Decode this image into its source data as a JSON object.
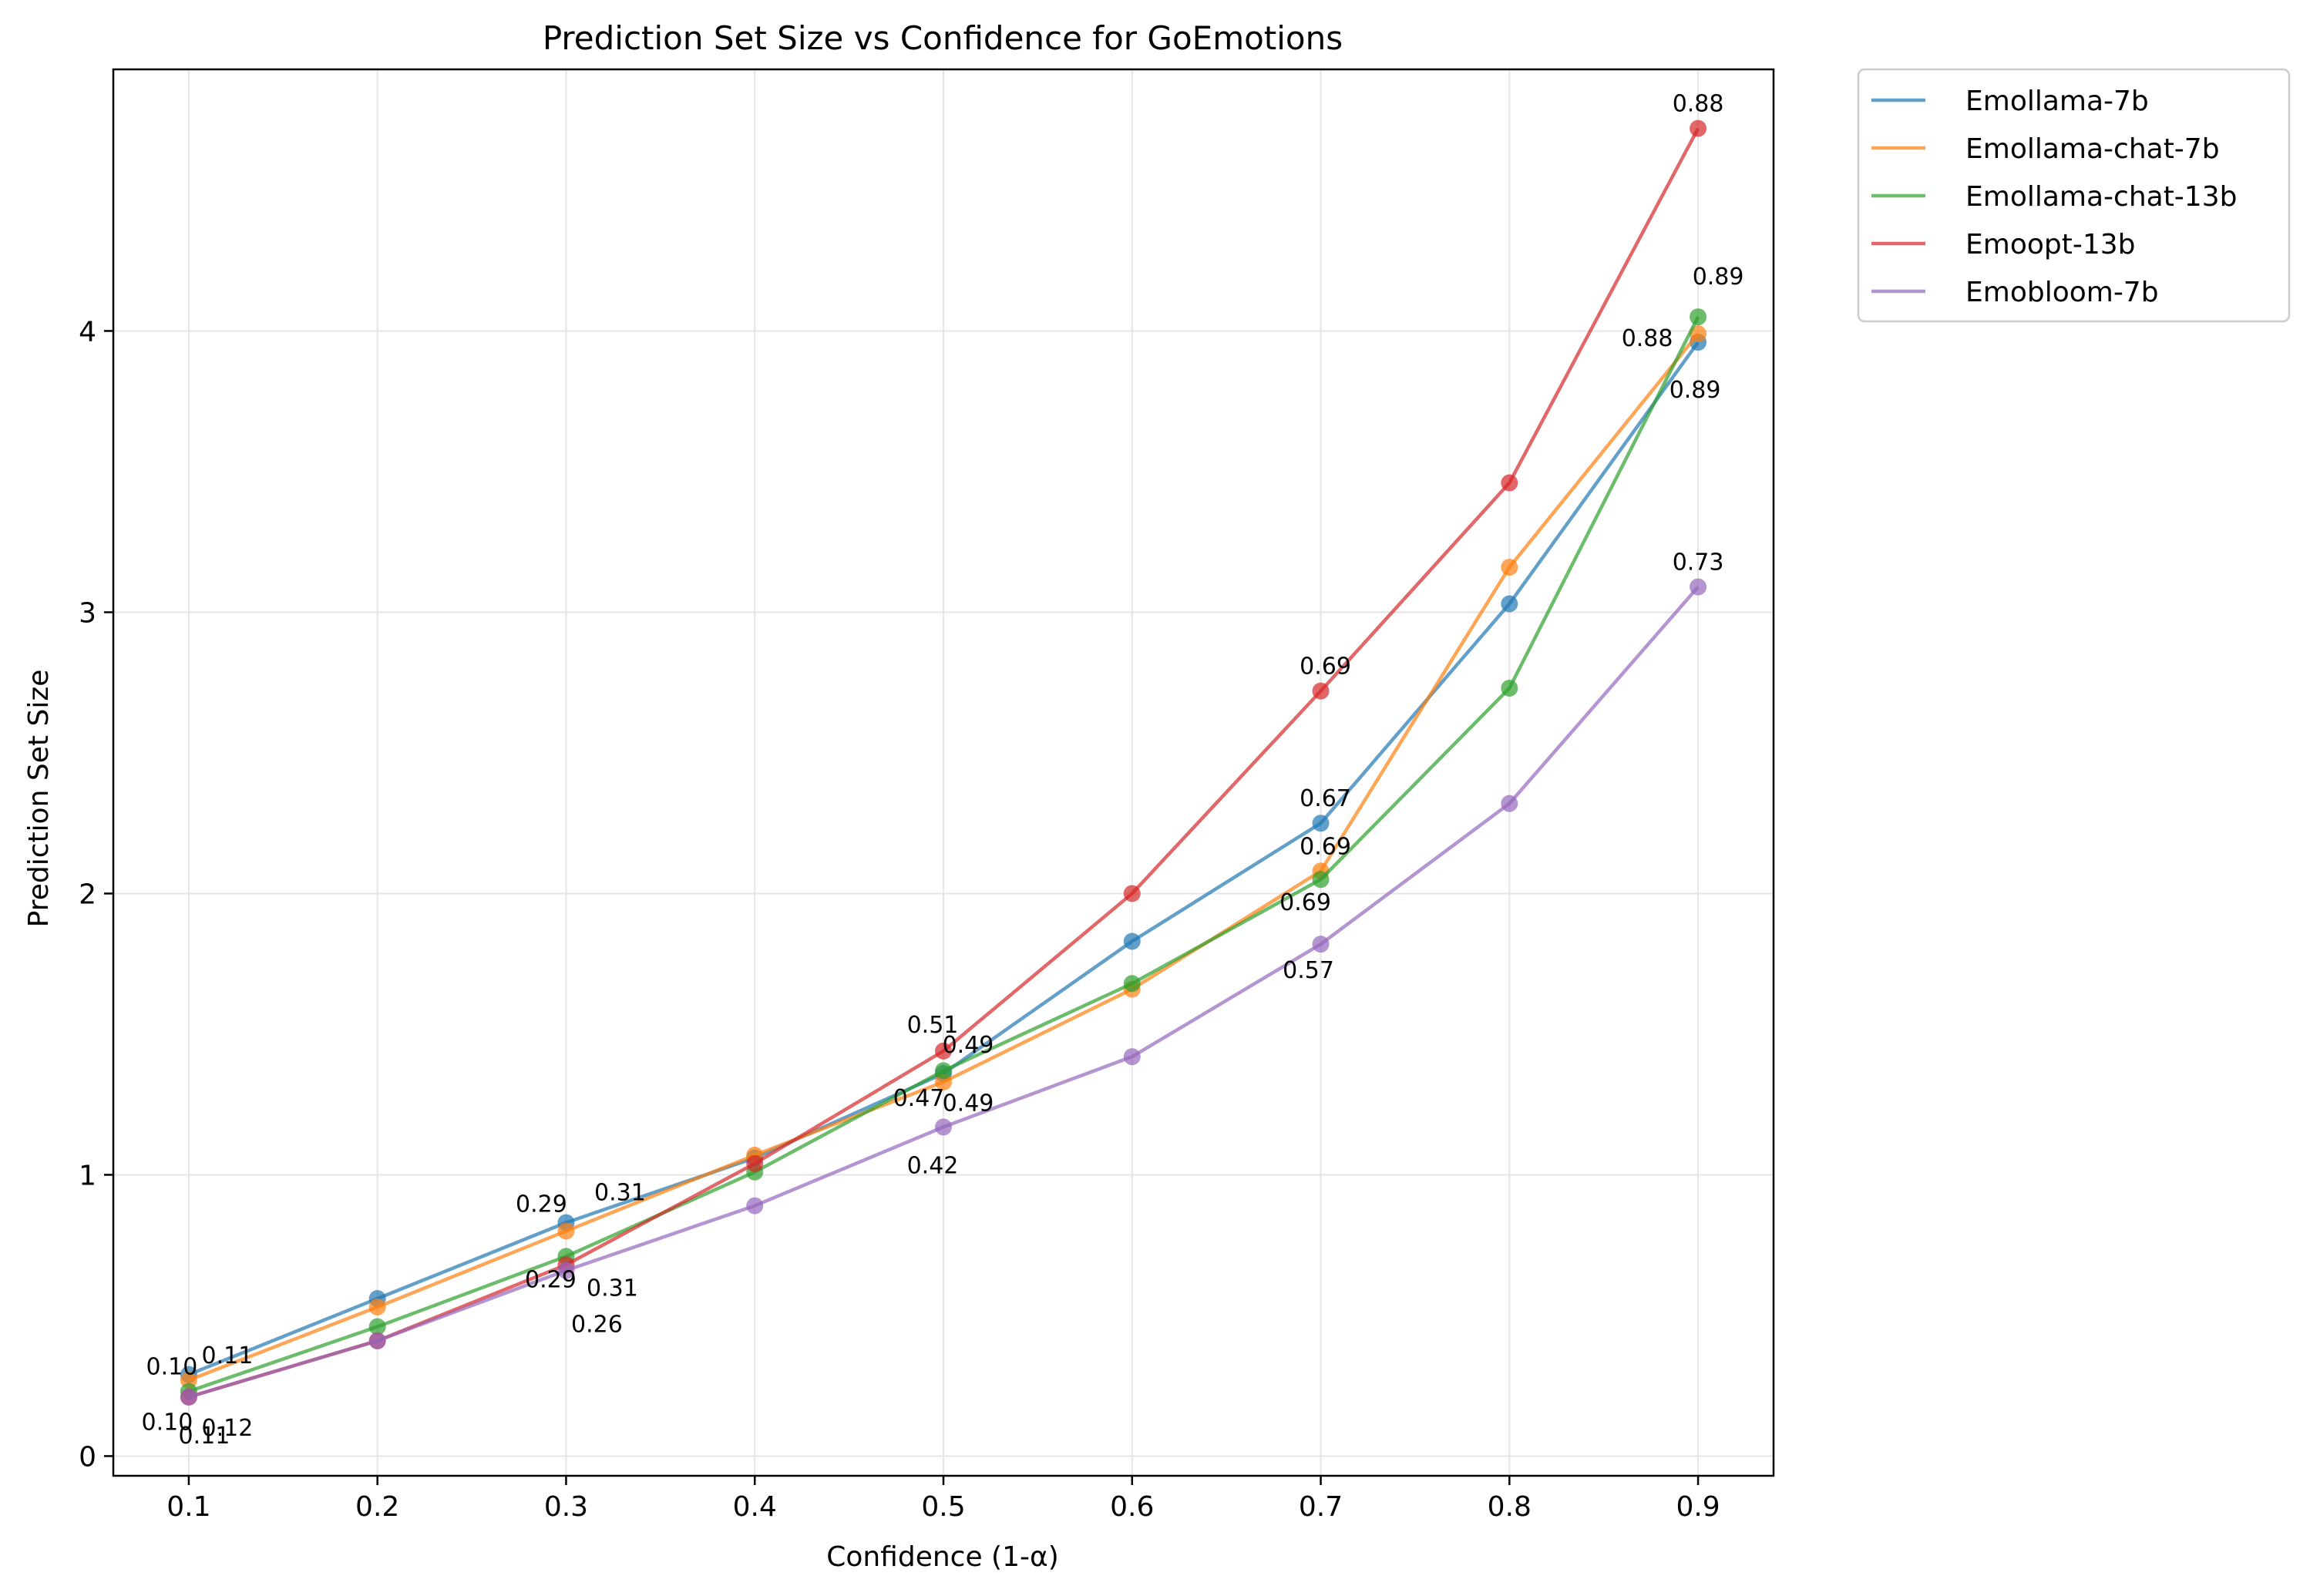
{
  "chart_data": {
    "type": "line",
    "title": "Prediction Set Size vs Confidence for GoEmotions",
    "xlabel": "Confidence (1-α)",
    "ylabel": "Prediction Set Size",
    "xlim": [
      0.06,
      0.94
    ],
    "ylim": [
      -0.07,
      4.93
    ],
    "xticks": [
      0.1,
      0.2,
      0.3,
      0.4,
      0.5,
      0.6,
      0.7,
      0.8,
      0.9
    ],
    "xtick_labels": [
      "0.1",
      "0.2",
      "0.3",
      "0.4",
      "0.5",
      "0.6",
      "0.7",
      "0.8",
      "0.9"
    ],
    "yticks": [
      0,
      1,
      2,
      3,
      4
    ],
    "ytick_labels": [
      "0",
      "1",
      "2",
      "3",
      "4"
    ],
    "grid": true,
    "legend_position": "outside-top-right",
    "x": [
      0.1,
      0.2,
      0.3,
      0.4,
      0.5,
      0.6,
      0.7,
      0.8,
      0.9
    ],
    "series": [
      {
        "name": "Emollama-7b",
        "color": "#1f77b4",
        "values": [
          0.29,
          0.56,
          0.83,
          1.06,
          1.36,
          1.83,
          2.25,
          3.03,
          3.96
        ]
      },
      {
        "name": "Emollama-chat-7b",
        "color": "#ff7f0e",
        "values": [
          0.27,
          0.53,
          0.8,
          1.07,
          1.33,
          1.66,
          2.08,
          3.16,
          3.99
        ]
      },
      {
        "name": "Emollama-chat-13b",
        "color": "#2ca02c",
        "values": [
          0.23,
          0.46,
          0.71,
          1.01,
          1.37,
          1.68,
          2.05,
          2.73,
          4.05
        ]
      },
      {
        "name": "Emoopt-13b",
        "color": "#d62728",
        "values": [
          0.21,
          0.41,
          0.68,
          1.04,
          1.44,
          2.0,
          2.72,
          3.46,
          4.72
        ]
      },
      {
        "name": "Emobloom-7b",
        "color": "#9467bd",
        "values": [
          0.21,
          0.41,
          0.66,
          0.89,
          1.17,
          1.42,
          1.82,
          2.32,
          3.09
        ]
      }
    ],
    "annotations": [
      {
        "text": "0.10",
        "x": 0.1,
        "y": 0.29,
        "series": "Emollama-7b"
      },
      {
        "text": "0.11",
        "x": 0.1,
        "y": 0.27,
        "series": "Emollama-chat-7b"
      },
      {
        "text": "0.10",
        "x": 0.1,
        "y": 0.23,
        "series": "Emollama-chat-13b"
      },
      {
        "text": "0.12",
        "x": 0.1,
        "y": 0.21,
        "series": "Emoopt-13b"
      },
      {
        "text": "0.11",
        "x": 0.1,
        "y": 0.21,
        "series": "Emobloom-7b"
      },
      {
        "text": "0.29",
        "x": 0.3,
        "y": 0.83,
        "series": "Emollama-7b"
      },
      {
        "text": "0.31",
        "x": 0.3,
        "y": 0.8,
        "series": "Emollama-chat-7b"
      },
      {
        "text": "0.29",
        "x": 0.3,
        "y": 0.71,
        "series": "Emollama-chat-13b"
      },
      {
        "text": "0.31",
        "x": 0.3,
        "y": 0.68,
        "series": "Emoopt-13b"
      },
      {
        "text": "0.26",
        "x": 0.3,
        "y": 0.66,
        "series": "Emobloom-7b"
      },
      {
        "text": "0.47",
        "x": 0.5,
        "y": 1.36,
        "series": "Emollama-7b"
      },
      {
        "text": "0.49",
        "x": 0.5,
        "y": 1.33,
        "series": "Emollama-chat-7b"
      },
      {
        "text": "0.49",
        "x": 0.5,
        "y": 1.37,
        "series": "Emollama-chat-13b"
      },
      {
        "text": "0.51",
        "x": 0.5,
        "y": 1.44,
        "series": "Emoopt-13b"
      },
      {
        "text": "0.42",
        "x": 0.5,
        "y": 1.17,
        "series": "Emobloom-7b"
      },
      {
        "text": "0.67",
        "x": 0.7,
        "y": 2.25,
        "series": "Emollama-7b"
      },
      {
        "text": "0.69",
        "x": 0.7,
        "y": 2.08,
        "series": "Emollama-chat-7b"
      },
      {
        "text": "0.69",
        "x": 0.7,
        "y": 2.05,
        "series": "Emollama-chat-13b"
      },
      {
        "text": "0.69",
        "x": 0.7,
        "y": 2.72,
        "series": "Emoopt-13b"
      },
      {
        "text": "0.57",
        "x": 0.7,
        "y": 1.82,
        "series": "Emobloom-7b"
      },
      {
        "text": "0.89",
        "x": 0.9,
        "y": 3.96,
        "series": "Emollama-7b"
      },
      {
        "text": "0.88",
        "x": 0.9,
        "y": 3.99,
        "series": "Emollama-chat-7b"
      },
      {
        "text": "0.89",
        "x": 0.9,
        "y": 4.05,
        "series": "Emollama-chat-13b"
      },
      {
        "text": "0.88",
        "x": 0.9,
        "y": 4.72,
        "series": "Emoopt-13b"
      },
      {
        "text": "0.73",
        "x": 0.9,
        "y": 3.09,
        "series": "Emobloom-7b"
      }
    ]
  }
}
